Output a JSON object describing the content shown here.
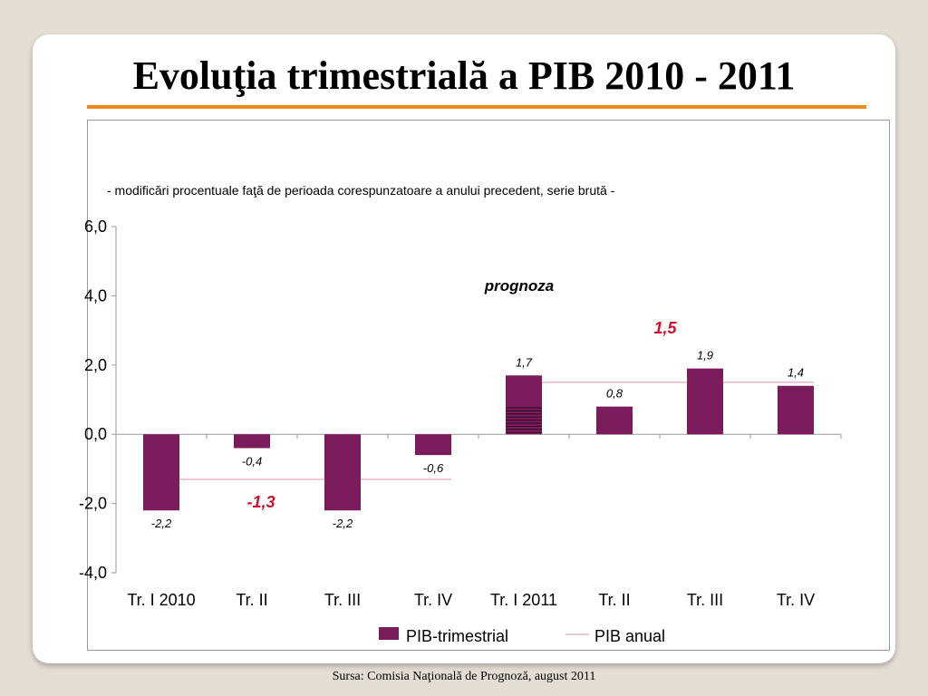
{
  "slide": {
    "title": "Evoluţia trimestrială a PIB 2010 - 2011",
    "source": "Sursa: Comisia Naţională de Prognoză, august 2011"
  },
  "colors": {
    "bar": "#7b1d5c",
    "annual_line": "#e7b6c8",
    "accent": "#f08a1c",
    "annual_label": "#d0112b"
  },
  "chart_data": {
    "type": "bar",
    "subtitle": "- modificări procentuale  faţă de perioada corespunzatoare a anului precedent, serie brută -",
    "categories": [
      "Tr. I 2010",
      "Tr. II",
      "Tr. III",
      "Tr. IV",
      "Tr. I 2011",
      "Tr. II",
      "Tr. III",
      "Tr. IV"
    ],
    "ylim": [
      -4,
      6
    ],
    "yticks": [
      6,
      4,
      2,
      0,
      -2,
      -4
    ],
    "ytick_labels": [
      "6,0",
      "4,0",
      "2,0",
      "0,0",
      "-2,0",
      "-4,0"
    ],
    "series": [
      {
        "name": "PIB-trimestrial",
        "values": [
          -2.2,
          -0.4,
          -2.2,
          -0.6,
          1.7,
          0.8,
          1.9,
          1.4
        ],
        "labels": [
          "-2,2",
          "-0,4",
          "-2,2",
          "-0,6",
          "1,7",
          "0,8",
          "1,9",
          "1,4"
        ]
      },
      {
        "name": "PIB anual",
        "segments": [
          {
            "from_index": 0,
            "to_index": 3,
            "value": -1.3,
            "label": "-1,3"
          },
          {
            "from_index": 4,
            "to_index": 7,
            "value": 1.5,
            "label": "1,5"
          }
        ]
      }
    ],
    "annotation": "prognoza",
    "legend_position": "bottom",
    "grid": false
  }
}
